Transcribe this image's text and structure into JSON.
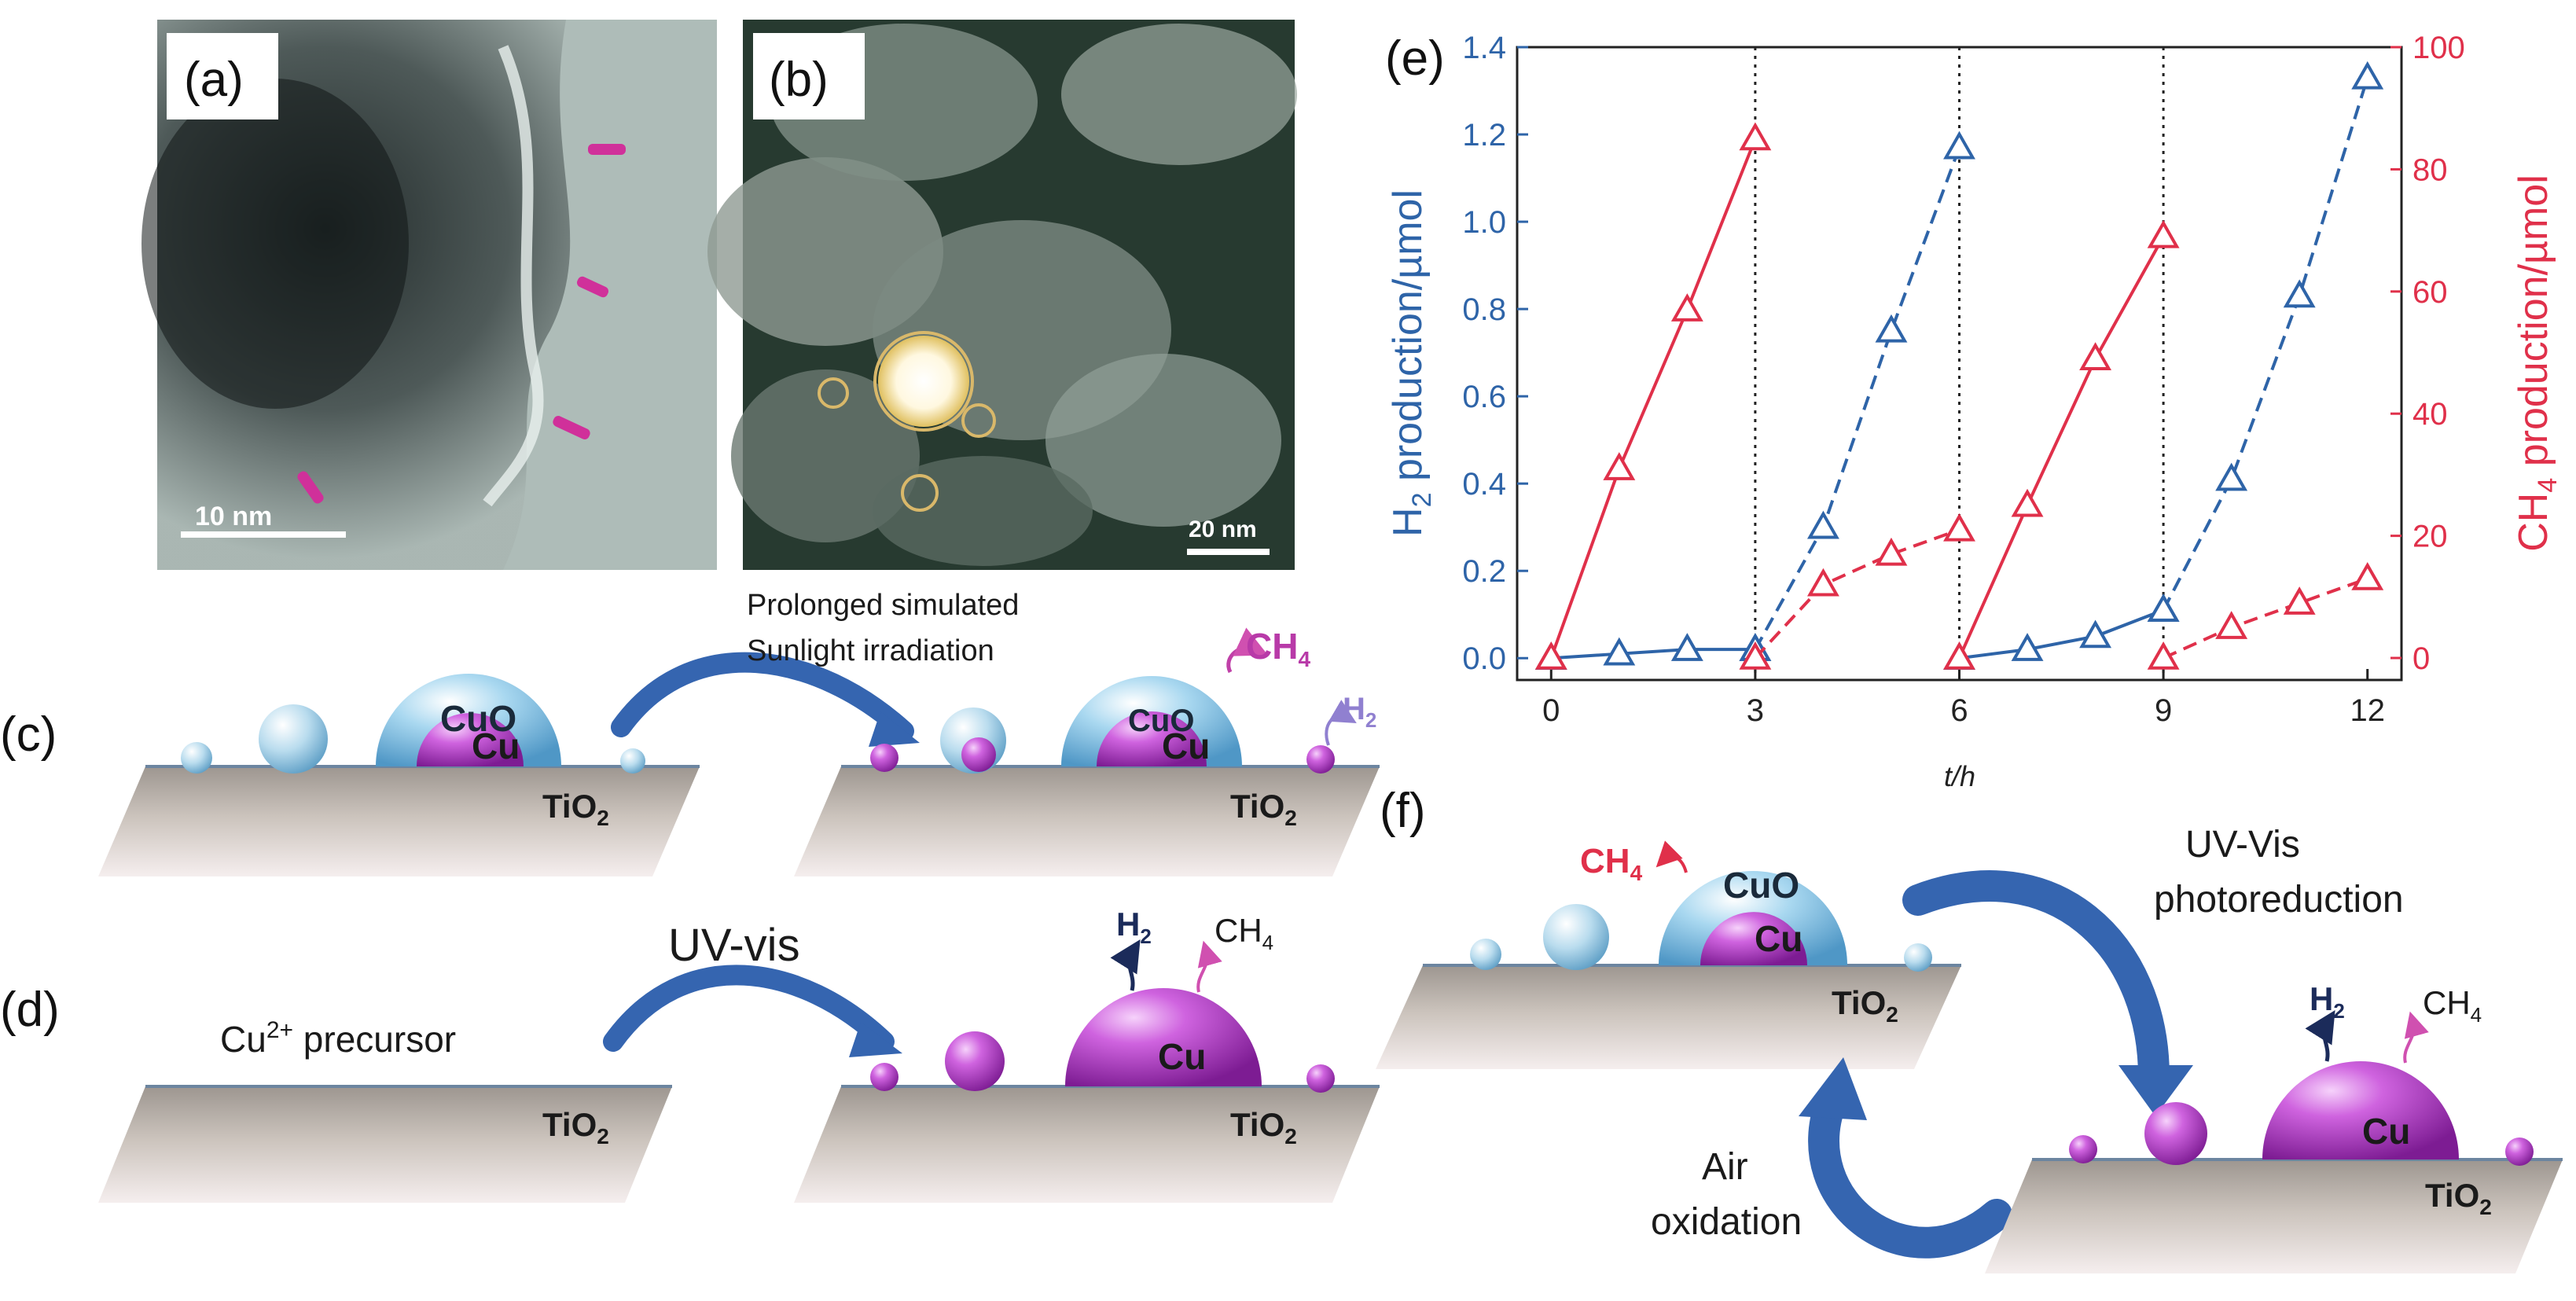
{
  "panels": {
    "a": {
      "label": "(a)",
      "scalebar": "10 nm"
    },
    "b": {
      "label": "(b)",
      "scalebar": "20 nm"
    },
    "c": {
      "label": "(c)",
      "arrow_text_line1": "Prolonged simulated",
      "arrow_text_line2": "Sunlight irradiation"
    },
    "d": {
      "label": "(d)",
      "arrow_text": "UV-vis",
      "precursor": "Cu",
      "precursor_sup": "2+",
      "precursor_rest": " precursor"
    },
    "e": {
      "label": "(e)"
    },
    "f": {
      "label": "(f)",
      "top_text_line1": "UV-Vis",
      "top_text_line2": "photoreduction",
      "bottom_text_line1": "Air",
      "bottom_text_line2": "oxidation"
    }
  },
  "chem": {
    "cuo": "CuO",
    "cu": "Cu",
    "ti": "TiO",
    "ti_sub": "2",
    "ch": "CH",
    "ch_sub": "4",
    "h": "H",
    "h_sub": "2"
  },
  "colors": {
    "h2": "#2e64a8",
    "ch4": "#e0304a",
    "cu": "#b040c8",
    "cuo": "#8ec8e8"
  },
  "chart_data": {
    "type": "line",
    "xlabel": "t/h",
    "ylabel_left": "H2 production/µmol",
    "ylabel_right": "CH4 production/µmol",
    "xlim": [
      -0.5,
      12.5
    ],
    "ylim_left": [
      -0.05,
      1.4
    ],
    "ylim_right": [
      -3.6,
      100
    ],
    "xticks": [
      0,
      3,
      6,
      9,
      12
    ],
    "yticks_left": [
      0.0,
      0.2,
      0.4,
      0.6,
      0.8,
      1.0,
      1.2,
      1.4
    ],
    "yticks_right": [
      0,
      20,
      40,
      60,
      80,
      100
    ],
    "cycle_dividers": [
      3,
      6,
      9
    ],
    "series": [
      {
        "axis": "left",
        "color": "#2e64a8",
        "style": "solid",
        "x": [
          0,
          1,
          2,
          3
        ],
        "y": [
          0.0,
          0.01,
          0.02,
          0.02
        ]
      },
      {
        "axis": "left",
        "color": "#2e64a8",
        "style": "dashed",
        "x": [
          3,
          4,
          5,
          6
        ],
        "y": [
          0.02,
          0.3,
          0.75,
          1.17
        ]
      },
      {
        "axis": "left",
        "color": "#2e64a8",
        "style": "solid",
        "x": [
          6,
          7,
          8,
          9
        ],
        "y": [
          0.0,
          0.02,
          0.05,
          0.11
        ]
      },
      {
        "axis": "left",
        "color": "#2e64a8",
        "style": "dashed",
        "x": [
          9,
          10,
          11,
          12
        ],
        "y": [
          0.11,
          0.41,
          0.83,
          1.33
        ]
      },
      {
        "axis": "right",
        "color": "#e0304a",
        "style": "solid",
        "x": [
          0,
          1,
          2,
          3
        ],
        "y": [
          0,
          31,
          57,
          85
        ]
      },
      {
        "axis": "right",
        "color": "#e0304a",
        "style": "dashed",
        "x": [
          3,
          4,
          5,
          6
        ],
        "y": [
          0,
          12,
          17,
          21
        ]
      },
      {
        "axis": "right",
        "color": "#e0304a",
        "style": "solid",
        "x": [
          6,
          7,
          8,
          9
        ],
        "y": [
          0,
          25,
          49,
          69
        ]
      },
      {
        "axis": "right",
        "color": "#e0304a",
        "style": "dashed",
        "x": [
          9,
          10,
          11,
          12
        ],
        "y": [
          0,
          5,
          9,
          13
        ]
      }
    ]
  }
}
